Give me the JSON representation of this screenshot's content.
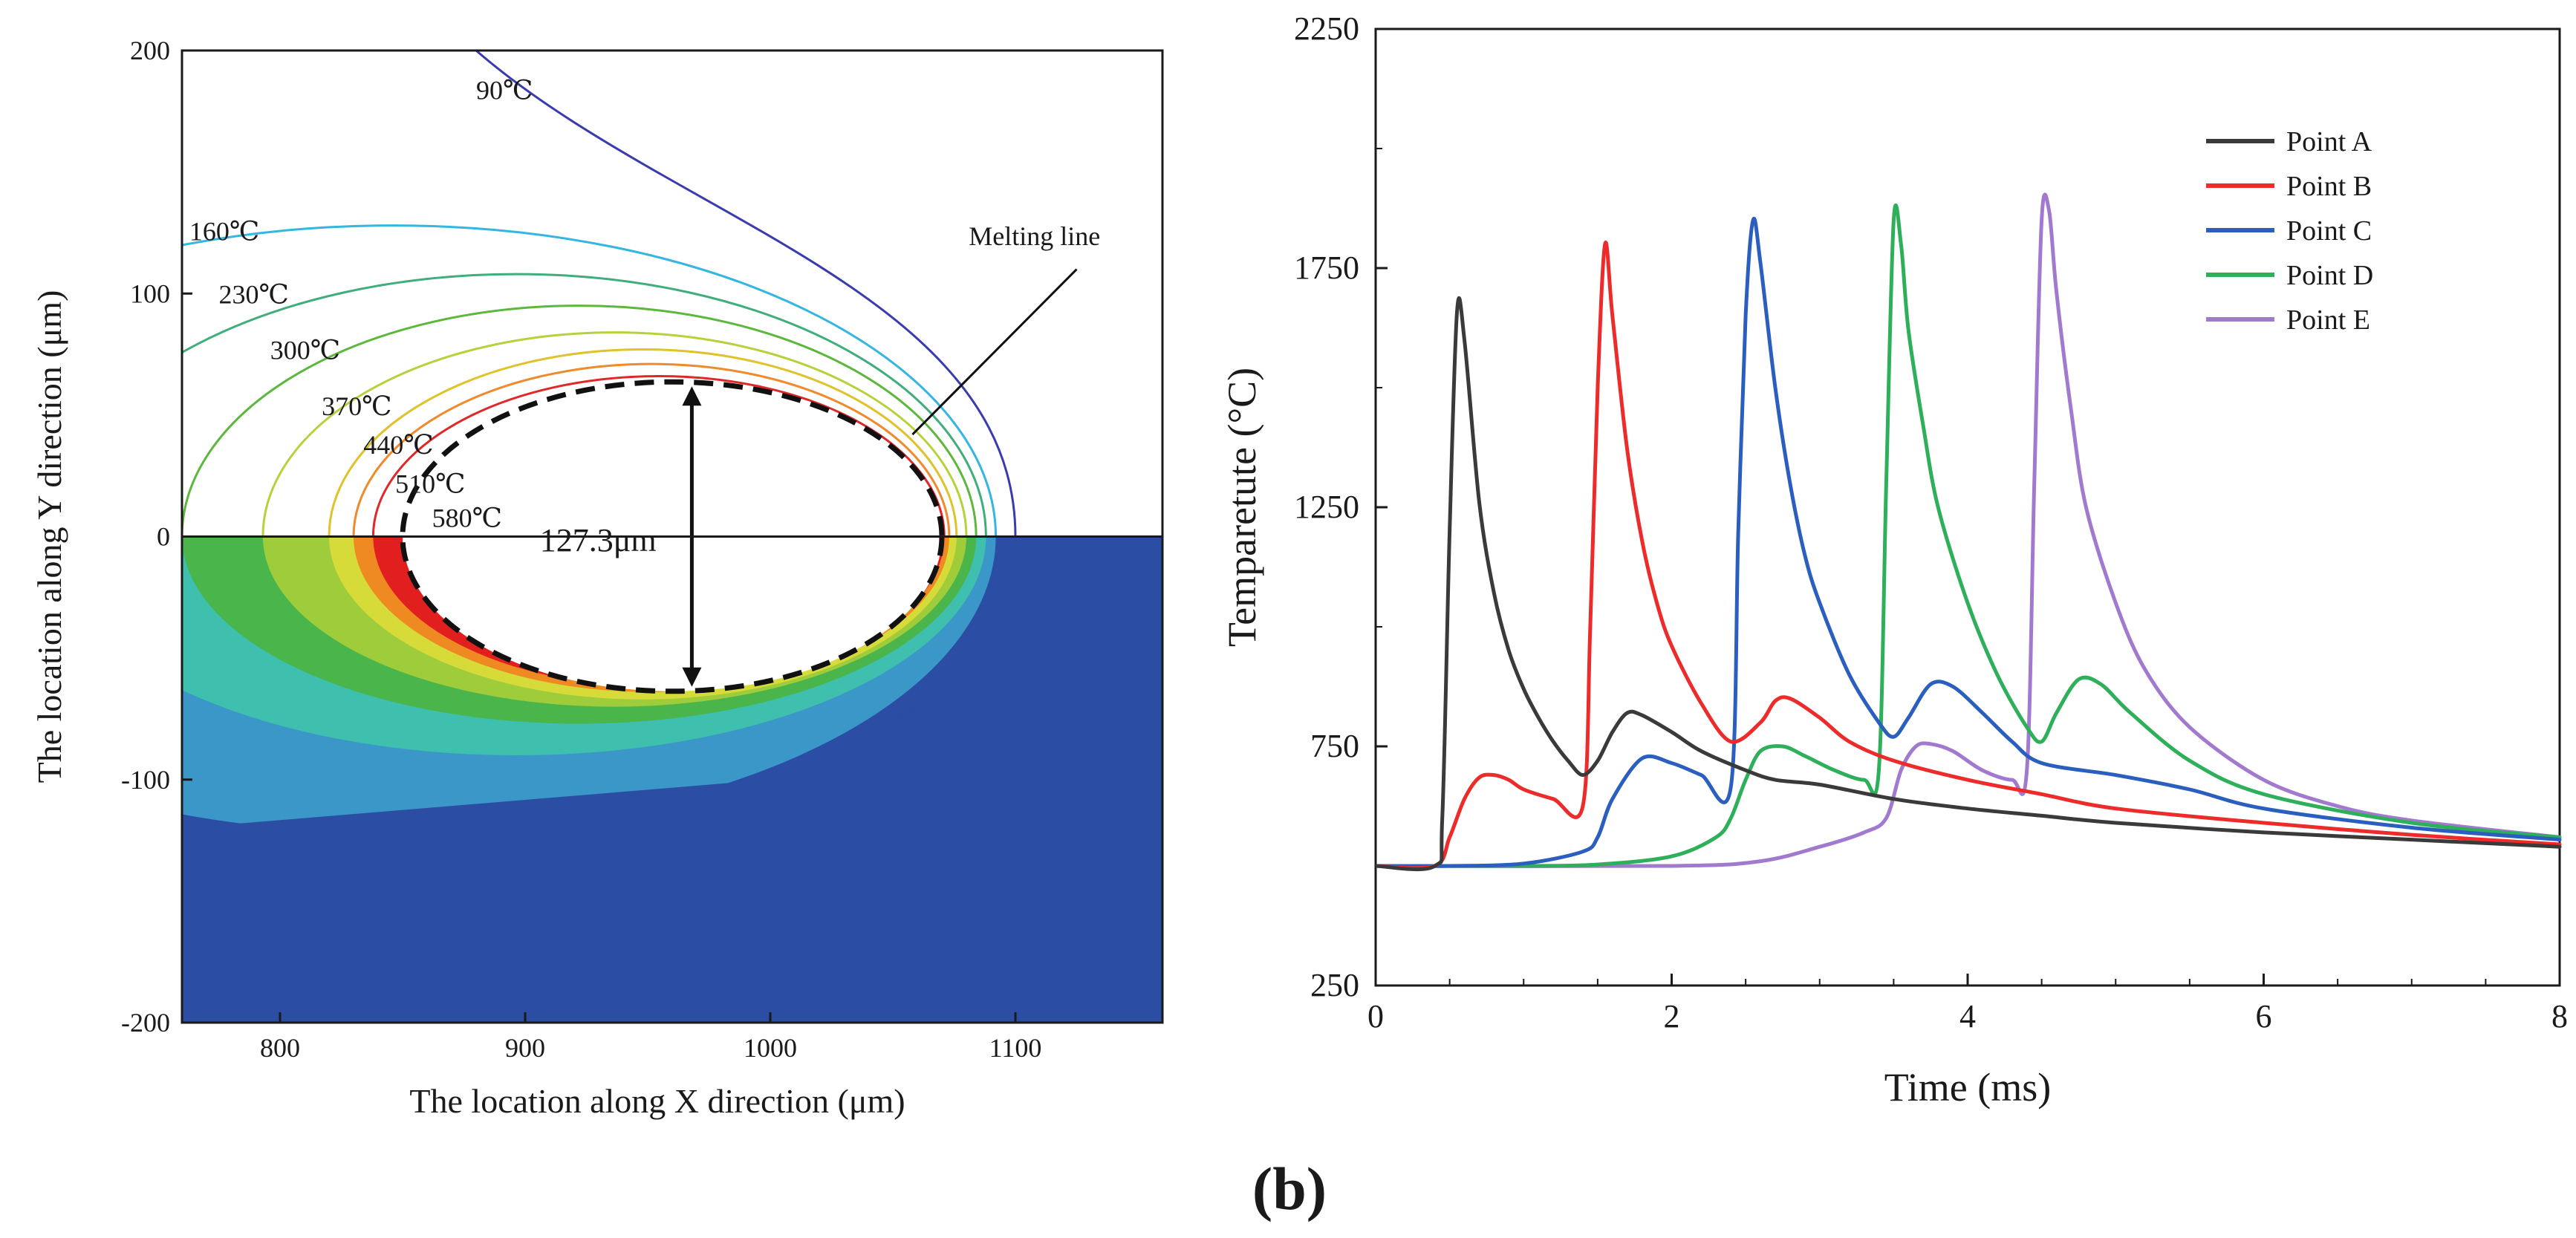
{
  "figure_label": "(b)",
  "chart_data": [
    {
      "type": "contour",
      "title": "",
      "xlabel": "The location along X direction (μm)",
      "ylabel": "The location along Y direction (μm)",
      "xlim": [
        760,
        1160
      ],
      "ylim": [
        -200,
        200
      ],
      "xticks": [
        800,
        900,
        1000,
        1100
      ],
      "yticks": [
        -200,
        -100,
        0,
        100,
        200
      ],
      "xtick_labels": [
        "800",
        "900",
        "1000",
        "1100"
      ],
      "ytick_labels": [
        "-200",
        "-100",
        "0",
        "100",
        "200"
      ],
      "melt_pool": {
        "center_x": 960,
        "center_y": 0,
        "half_length": 110,
        "half_width": 63.65,
        "dimension_label": "127.3μm"
      },
      "melting_line_label": "Melting line",
      "isotherms": [
        {
          "label": "90℃",
          "temp": 90,
          "color": "#3b3bb0"
        },
        {
          "label": "160℃",
          "temp": 160,
          "color": "#33b6e0"
        },
        {
          "label": "230℃",
          "temp": 230,
          "color": "#3fae7c"
        },
        {
          "label": "300℃",
          "temp": 300,
          "color": "#5cb83c"
        },
        {
          "label": "370℃",
          "temp": 370,
          "color": "#b6d23a"
        },
        {
          "label": "440℃",
          "temp": 440,
          "color": "#e0c22a"
        },
        {
          "label": "510℃",
          "temp": 510,
          "color": "#f08a2a"
        },
        {
          "label": "580℃",
          "temp": 580,
          "color": "#e02828"
        }
      ],
      "fill_colors": {
        "background": "#2b4da3",
        "band_160": "#3a97c8",
        "band_230": "#3fbfae",
        "band_300": "#49b54a",
        "band_370": "#9fcc3a",
        "band_440": "#d6db3a",
        "band_510": "#ef8a22",
        "band_580": "#e11f1f"
      }
    },
    {
      "type": "line",
      "title": "",
      "xlabel": "Time (ms)",
      "ylabel": "Temparetute (°C)",
      "xlim": [
        0,
        8
      ],
      "ylim": [
        250,
        2250
      ],
      "xticks": [
        0,
        2,
        4,
        6,
        8
      ],
      "yticks": [
        250,
        750,
        1250,
        1750,
        2250
      ],
      "xtick_labels": [
        "0",
        "2",
        "4",
        "6",
        "8"
      ],
      "ytick_labels": [
        "250",
        "750",
        "1250",
        "1750",
        "2250"
      ],
      "legend_position": "top-right",
      "series": [
        {
          "name": "Point A",
          "color": "#3a3a3a",
          "x": [
            0,
            0.4,
            0.45,
            0.5,
            0.55,
            0.6,
            0.7,
            0.8,
            0.9,
            1.0,
            1.1,
            1.2,
            1.3,
            1.4,
            1.5,
            1.6,
            1.7,
            1.8,
            2.0,
            2.2,
            2.5,
            2.7,
            3.0,
            3.5,
            4.0,
            4.5,
            5.0,
            6.0,
            7.0,
            8.0
          ],
          "y": [
            500,
            500,
            600,
            1200,
            1660,
            1600,
            1260,
            1070,
            950,
            870,
            810,
            760,
            720,
            690,
            720,
            780,
            820,
            815,
            780,
            740,
            700,
            680,
            670,
            640,
            620,
            605,
            590,
            570,
            555,
            540
          ]
        },
        {
          "name": "Point B",
          "color": "#ee2b2b",
          "x": [
            0,
            0.4,
            0.5,
            0.6,
            0.7,
            0.8,
            0.9,
            1.0,
            1.2,
            1.4,
            1.45,
            1.5,
            1.55,
            1.6,
            1.7,
            1.8,
            1.9,
            2.0,
            2.2,
            2.4,
            2.6,
            2.7,
            2.8,
            3.0,
            3.2,
            3.5,
            4.0,
            4.5,
            5.0,
            6.0,
            7.0,
            8.0
          ],
          "y": [
            500,
            500,
            560,
            640,
            685,
            690,
            680,
            660,
            640,
            625,
            1000,
            1500,
            1800,
            1650,
            1370,
            1180,
            1050,
            960,
            840,
            760,
            800,
            845,
            850,
            810,
            760,
            720,
            680,
            650,
            620,
            590,
            565,
            545
          ]
        },
        {
          "name": "Point C",
          "color": "#2a5fbf",
          "x": [
            0,
            0.5,
            1.0,
            1.4,
            1.5,
            1.6,
            1.8,
            2.0,
            2.2,
            2.4,
            2.45,
            2.5,
            2.55,
            2.6,
            2.7,
            2.8,
            2.9,
            3.0,
            3.2,
            3.4,
            3.5,
            3.6,
            3.75,
            3.9,
            4.1,
            4.3,
            4.5,
            5.0,
            5.5,
            6.0,
            7.0,
            8.0
          ],
          "y": [
            500,
            500,
            505,
            530,
            560,
            640,
            725,
            715,
            690,
            665,
            1200,
            1650,
            1850,
            1760,
            1500,
            1300,
            1150,
            1050,
            900,
            800,
            770,
            810,
            880,
            875,
            820,
            760,
            715,
            690,
            660,
            620,
            580,
            555
          ]
        },
        {
          "name": "Point D",
          "color": "#2eaf5a",
          "x": [
            0,
            1.0,
            1.5,
            2.0,
            2.3,
            2.4,
            2.5,
            2.6,
            2.75,
            2.9,
            3.1,
            3.3,
            3.4,
            3.45,
            3.5,
            3.55,
            3.6,
            3.7,
            3.8,
            4.0,
            4.2,
            4.4,
            4.5,
            4.6,
            4.75,
            4.9,
            5.1,
            5.5,
            6.0,
            7.0,
            8.0
          ],
          "y": [
            500,
            500,
            503,
            520,
            560,
            600,
            680,
            740,
            750,
            730,
            700,
            680,
            700,
            1300,
            1850,
            1800,
            1620,
            1420,
            1250,
            1050,
            900,
            790,
            760,
            820,
            890,
            880,
            820,
            720,
            650,
            590,
            560
          ]
        },
        {
          "name": "Point E",
          "color": "#a17ad0",
          "x": [
            0,
            2.0,
            2.6,
            3.0,
            3.3,
            3.45,
            3.55,
            3.65,
            3.75,
            3.9,
            4.1,
            4.3,
            4.4,
            4.45,
            4.5,
            4.55,
            4.6,
            4.7,
            4.8,
            5.0,
            5.2,
            5.5,
            6.0,
            6.5,
            7.0,
            8.0
          ],
          "y": [
            500,
            500,
            510,
            540,
            570,
            600,
            700,
            750,
            755,
            740,
            700,
            680,
            700,
            1300,
            1850,
            1870,
            1700,
            1450,
            1250,
            1050,
            910,
            790,
            680,
            625,
            595,
            560
          ]
        }
      ]
    }
  ]
}
